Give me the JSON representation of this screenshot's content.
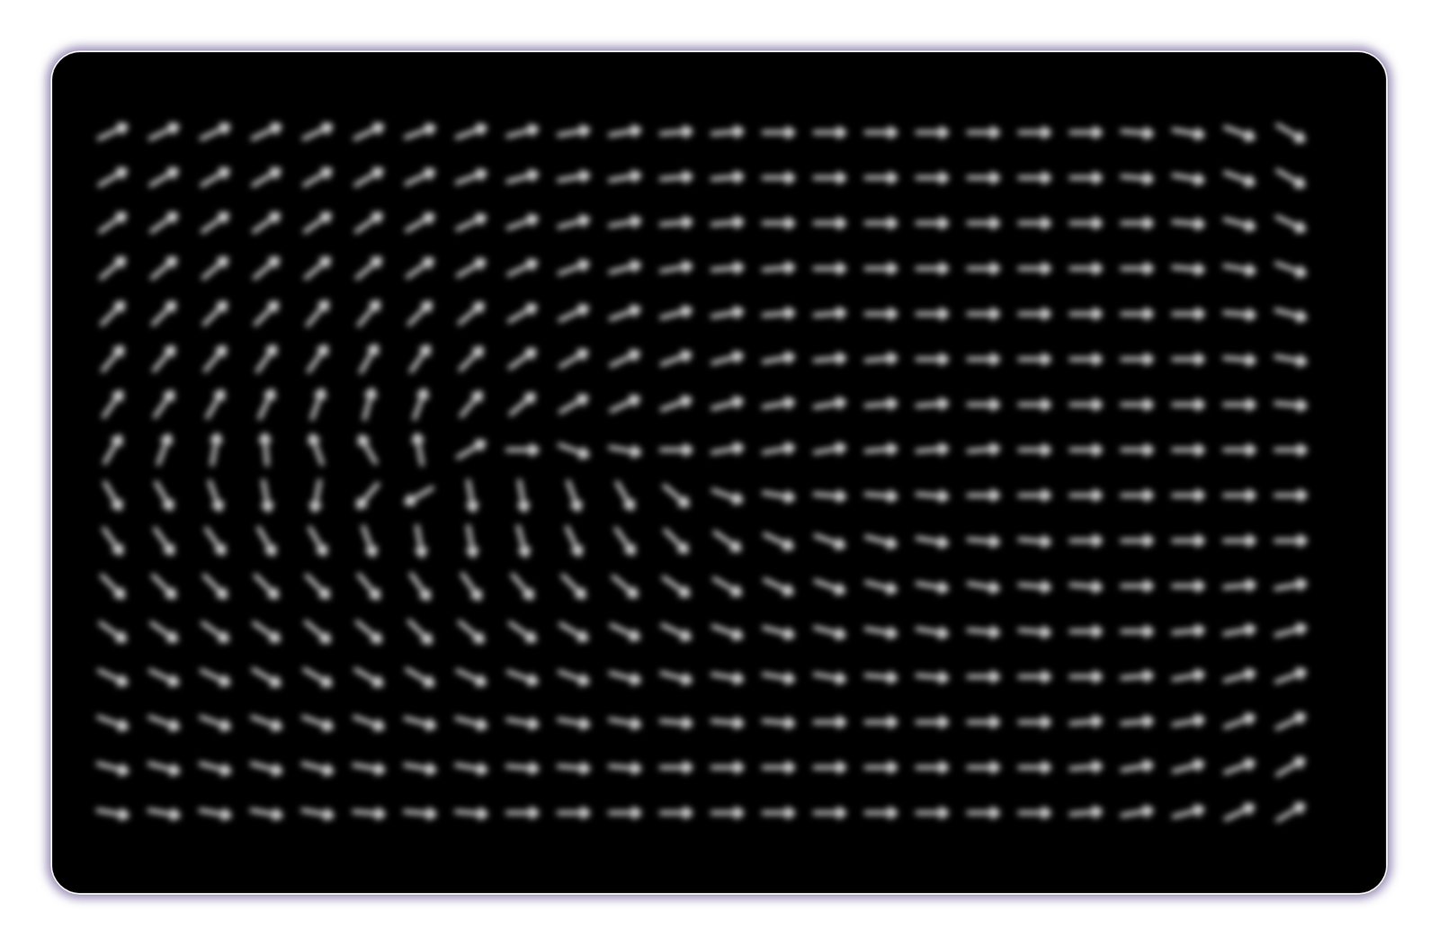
{
  "chart_data": {
    "type": "quiver",
    "x": [
      0,
      1,
      2,
      3,
      4,
      5,
      6,
      7,
      8,
      9,
      10,
      11,
      12,
      13,
      14,
      15,
      16,
      17,
      18,
      19,
      20,
      21,
      22,
      23
    ],
    "y": [
      15,
      14,
      13,
      12,
      11,
      10,
      9,
      8,
      7,
      6,
      5,
      4,
      3,
      2,
      1,
      0
    ],
    "angles": [
      [
        25,
        25,
        25,
        25,
        25,
        25,
        20,
        20,
        15,
        10,
        10,
        5,
        5,
        0,
        0,
        0,
        0,
        0,
        0,
        0,
        -5,
        -10,
        -20,
        -30
      ],
      [
        30,
        30,
        30,
        30,
        30,
        30,
        25,
        20,
        15,
        10,
        10,
        5,
        5,
        0,
        0,
        0,
        0,
        0,
        0,
        0,
        -5,
        -10,
        -20,
        -30
      ],
      [
        35,
        35,
        35,
        35,
        35,
        35,
        30,
        25,
        20,
        15,
        10,
        5,
        5,
        0,
        0,
        0,
        0,
        0,
        0,
        0,
        0,
        -5,
        -15,
        -25
      ],
      [
        40,
        40,
        40,
        40,
        40,
        40,
        35,
        30,
        25,
        20,
        15,
        10,
        5,
        5,
        0,
        0,
        0,
        0,
        0,
        0,
        0,
        -5,
        -10,
        -20
      ],
      [
        45,
        45,
        45,
        45,
        50,
        50,
        45,
        40,
        30,
        25,
        20,
        15,
        10,
        5,
        5,
        0,
        0,
        0,
        0,
        0,
        0,
        0,
        -5,
        -15
      ],
      [
        50,
        50,
        50,
        55,
        55,
        60,
        55,
        45,
        35,
        30,
        25,
        20,
        15,
        10,
        5,
        5,
        0,
        0,
        0,
        0,
        0,
        0,
        -5,
        -10
      ],
      [
        55,
        55,
        60,
        65,
        70,
        75,
        70,
        50,
        40,
        30,
        25,
        20,
        15,
        10,
        10,
        5,
        5,
        0,
        0,
        0,
        0,
        0,
        0,
        -5
      ],
      [
        60,
        70,
        80,
        95,
        110,
        120,
        100,
        30,
        0,
        -20,
        -10,
        0,
        10,
        10,
        10,
        5,
        5,
        5,
        0,
        0,
        0,
        0,
        0,
        0
      ],
      [
        -60,
        -60,
        -70,
        -80,
        -100,
        -130,
        -150,
        -80,
        -80,
        -70,
        -60,
        -40,
        -20,
        -10,
        -5,
        -5,
        -5,
        0,
        0,
        0,
        0,
        0,
        0,
        0
      ],
      [
        -55,
        -55,
        -55,
        -60,
        -60,
        -70,
        -80,
        -80,
        -75,
        -65,
        -55,
        -45,
        -35,
        -25,
        -20,
        -15,
        -10,
        -5,
        -5,
        0,
        0,
        0,
        0,
        0
      ],
      [
        -45,
        -45,
        -45,
        -45,
        -45,
        -50,
        -55,
        -55,
        -50,
        -45,
        -40,
        -35,
        -30,
        -25,
        -20,
        -15,
        -10,
        -10,
        -5,
        -5,
        0,
        0,
        5,
        10
      ],
      [
        -35,
        -35,
        -35,
        -35,
        -40,
        -40,
        -45,
        -40,
        -35,
        -30,
        -25,
        -25,
        -20,
        -15,
        -15,
        -10,
        -10,
        -5,
        -5,
        0,
        0,
        5,
        10,
        15
      ],
      [
        -25,
        -25,
        -25,
        -30,
        -30,
        -30,
        -30,
        -25,
        -20,
        -20,
        -15,
        -15,
        -10,
        -10,
        -10,
        -5,
        -5,
        0,
        0,
        0,
        5,
        10,
        15,
        20
      ],
      [
        -20,
        -20,
        -20,
        -20,
        -20,
        -20,
        -15,
        -15,
        -10,
        -10,
        -10,
        -5,
        -5,
        -5,
        0,
        0,
        0,
        0,
        0,
        5,
        5,
        10,
        20,
        25
      ],
      [
        -15,
        -15,
        -15,
        -15,
        -15,
        -10,
        -10,
        -10,
        -5,
        -5,
        -5,
        0,
        0,
        0,
        0,
        0,
        0,
        0,
        0,
        5,
        10,
        15,
        20,
        30
      ],
      [
        -10,
        -10,
        -10,
        -10,
        -10,
        -5,
        -5,
        -5,
        0,
        0,
        0,
        0,
        0,
        0,
        0,
        0,
        0,
        0,
        0,
        5,
        10,
        15,
        25,
        30
      ]
    ],
    "xlim": [
      -1.2,
      24.9
    ],
    "ylim": [
      -1.8,
      16.8
    ],
    "tick_labels": false,
    "grid": false,
    "color": "#d9d9d9"
  }
}
